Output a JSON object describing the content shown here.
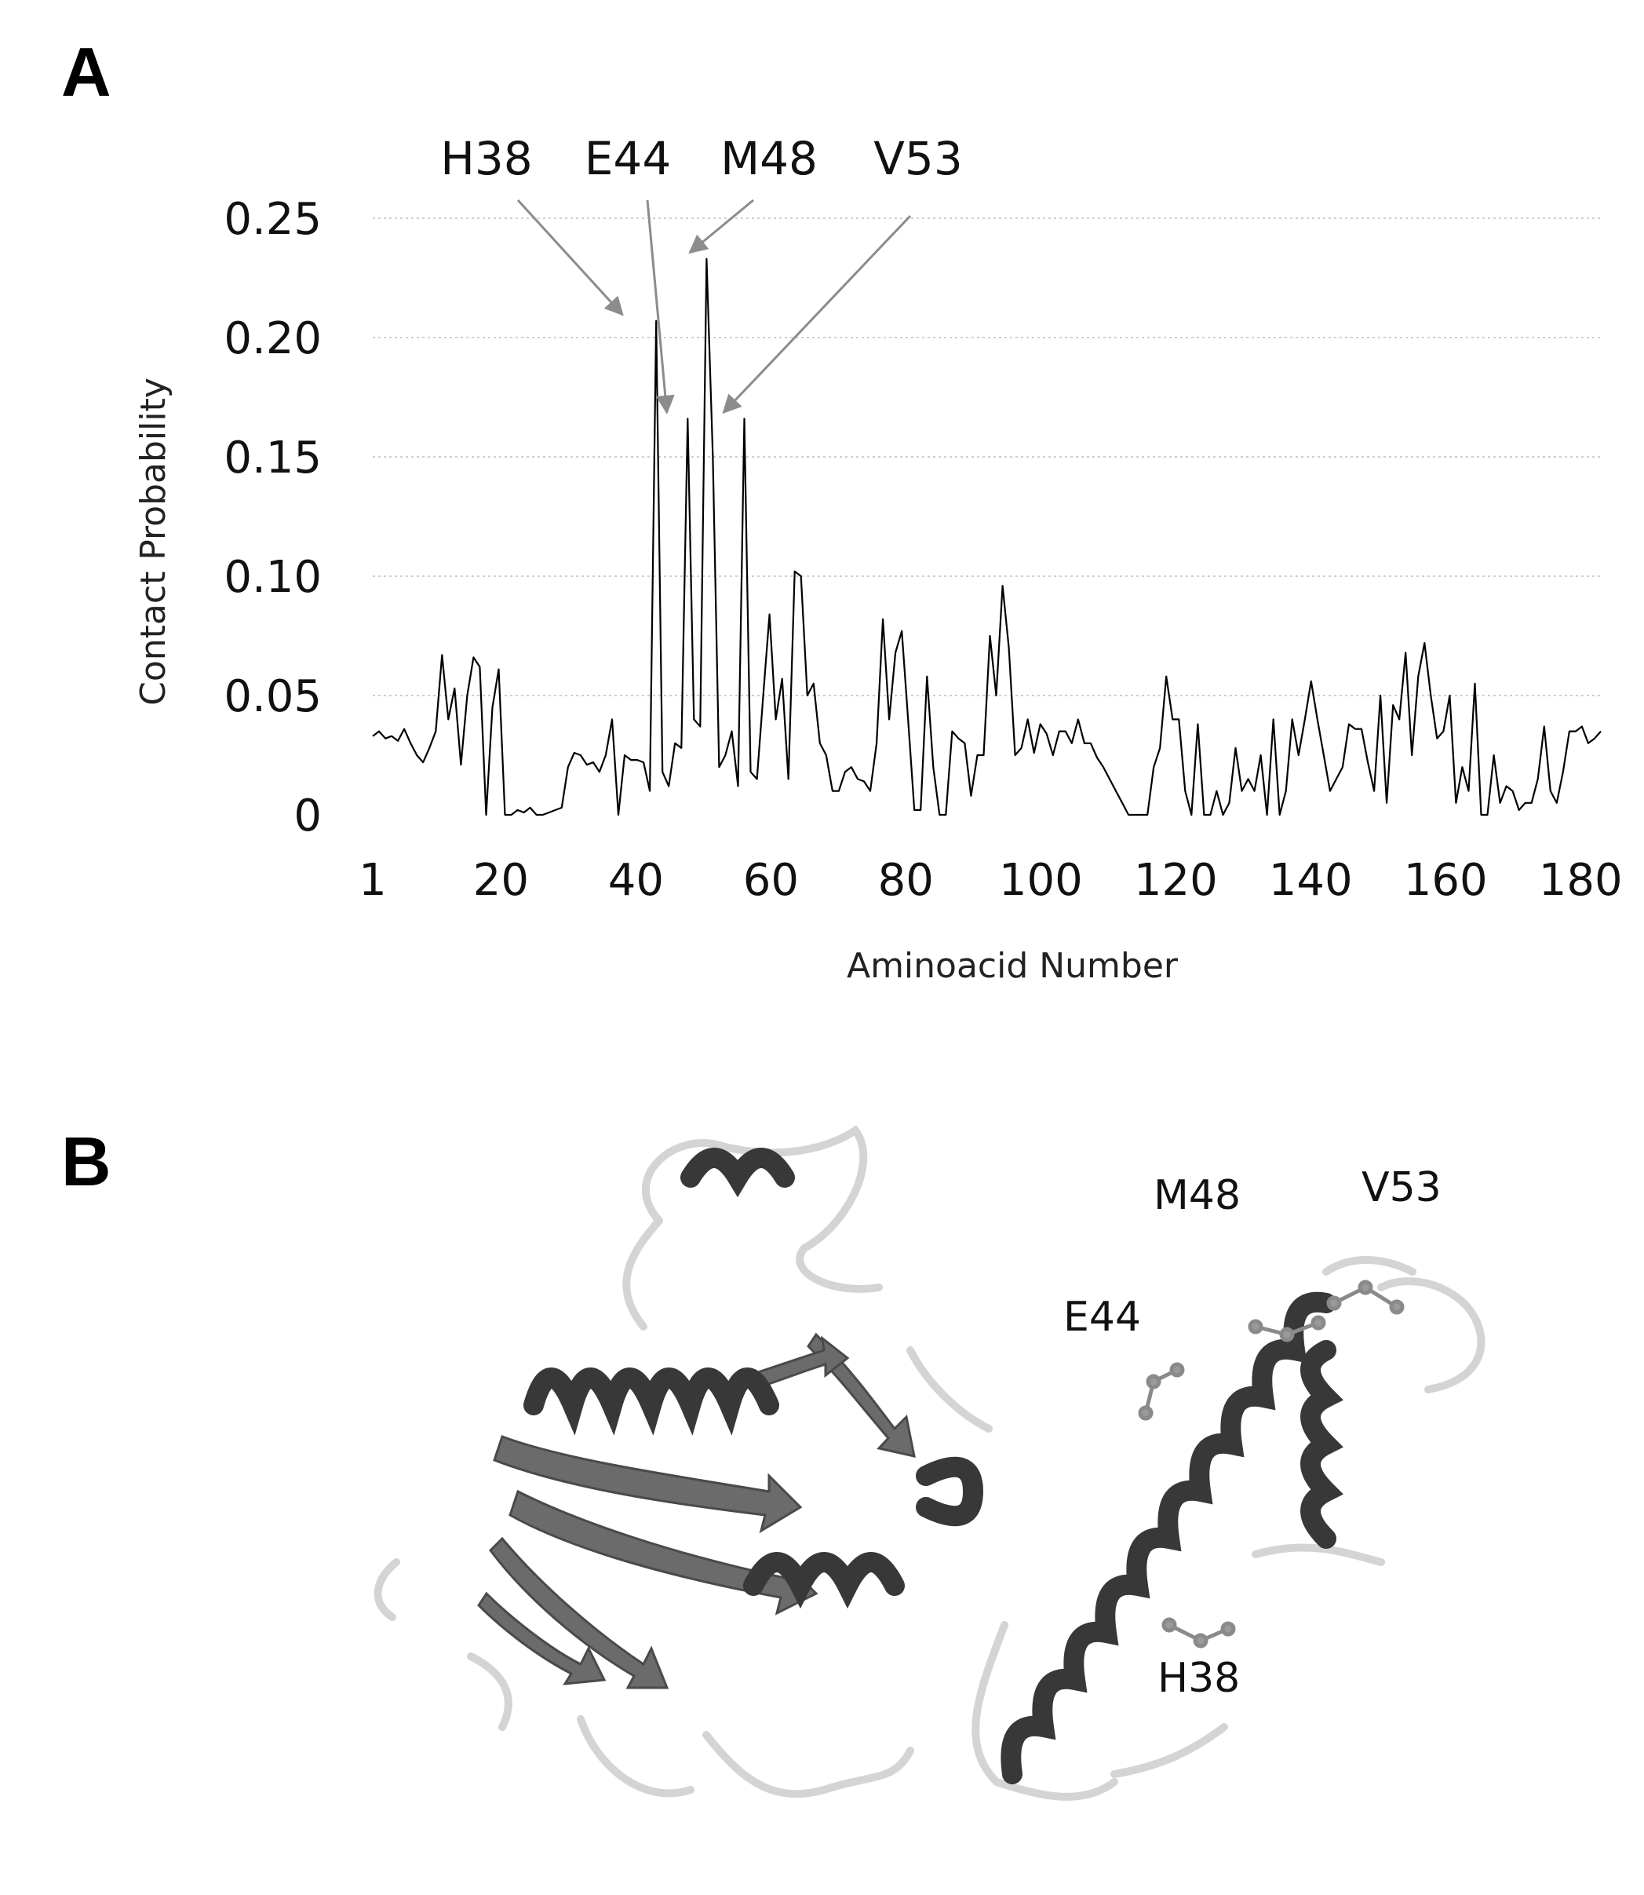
{
  "panels": {
    "a_label": "A",
    "b_label": "B"
  },
  "chart_data": {
    "type": "line",
    "xlabel": "Aminoacid Number",
    "ylabel": "Contact Probability",
    "xlim": [
      1,
      183
    ],
    "ylim": [
      0,
      0.25
    ],
    "x_ticks": [
      {
        "value": 1,
        "label": "1"
      },
      {
        "value": 20,
        "label": "20"
      },
      {
        "value": 40,
        "label": "40"
      },
      {
        "value": 60,
        "label": "60"
      },
      {
        "value": 80,
        "label": "80"
      },
      {
        "value": 100,
        "label": "100"
      },
      {
        "value": 120,
        "label": "120"
      },
      {
        "value": 140,
        "label": "140"
      },
      {
        "value": 160,
        "label": "160"
      },
      {
        "value": 180,
        "label": "180"
      }
    ],
    "y_ticks": [
      {
        "value": 0,
        "label": "0"
      },
      {
        "value": 0.05,
        "label": "0.05"
      },
      {
        "value": 0.1,
        "label": "0.10"
      },
      {
        "value": 0.15,
        "label": "0.15"
      },
      {
        "value": 0.2,
        "label": "0.20"
      },
      {
        "value": 0.25,
        "label": "0.25"
      }
    ],
    "grid": true,
    "line_color": "#000000",
    "series": [
      {
        "values": [
          0.033,
          0.035,
          0.032,
          0.033,
          0.031,
          0.036,
          0.03,
          0.025,
          0.022,
          0.028,
          0.035,
          0.067,
          0.04,
          0.053,
          0.021,
          0.05,
          0.066,
          0.062,
          0.0,
          0.045,
          0.061,
          0.0,
          0.0,
          0.002,
          0.001,
          0.003,
          0.0,
          0.0,
          0.001,
          0.002,
          0.003,
          0.02,
          0.026,
          0.025,
          0.021,
          0.022,
          0.018,
          0.025,
          0.04,
          0.0,
          0.025,
          0.023,
          0.023,
          0.022,
          0.01,
          0.207,
          0.018,
          0.012,
          0.03,
          0.028,
          0.166,
          0.04,
          0.037,
          0.233,
          0.15,
          0.02,
          0.025,
          0.035,
          0.012,
          0.166,
          0.018,
          0.015,
          0.05,
          0.084,
          0.04,
          0.057,
          0.015,
          0.102,
          0.1,
          0.05,
          0.055,
          0.03,
          0.025,
          0.01,
          0.01,
          0.018,
          0.02,
          0.015,
          0.014,
          0.01,
          0.03,
          0.082,
          0.04,
          0.068,
          0.077,
          0.04,
          0.002,
          0.002,
          0.058,
          0.02,
          0.0,
          0.0,
          0.035,
          0.032,
          0.03,
          0.008,
          0.025,
          0.025,
          0.075,
          0.05,
          0.096,
          0.07,
          0.025,
          0.028,
          0.04,
          0.026,
          0.038,
          0.034,
          0.025,
          0.035,
          0.035,
          0.03,
          0.04,
          0.03,
          0.03,
          0.024,
          0.02,
          0.015,
          0.01,
          0.005,
          0.0,
          0.0,
          0.0,
          0.0,
          0.02,
          0.028,
          0.058,
          0.04,
          0.04,
          0.01,
          0.0,
          0.038,
          0.0,
          0.0,
          0.01,
          0.0,
          0.005,
          0.028,
          0.01,
          0.015,
          0.01,
          0.025,
          0.0,
          0.04,
          0.0,
          0.01,
          0.04,
          0.025,
          0.04,
          0.056,
          0.04,
          0.025,
          0.01,
          0.015,
          0.02,
          0.038,
          0.036,
          0.036,
          0.022,
          0.01,
          0.05,
          0.005,
          0.046,
          0.04,
          0.068,
          0.025,
          0.058,
          0.072,
          0.05,
          0.032,
          0.035,
          0.05,
          0.005,
          0.02,
          0.01,
          0.055,
          0.0,
          0.0,
          0.025,
          0.005,
          0.012,
          0.01,
          0.002,
          0.005,
          0.005,
          0.015,
          0.037,
          0.01,
          0.005,
          0.018,
          0.035,
          0.035,
          0.037,
          0.03,
          0.032,
          0.035
        ]
      }
    ],
    "annotations": [
      {
        "text": "H38",
        "target_x": 38,
        "target_y": 0.207
      },
      {
        "text": "E44",
        "target_x": 44,
        "target_y": 0.166
      },
      {
        "text": "M48",
        "target_x": 48,
        "target_y": 0.233
      },
      {
        "text": "V53",
        "target_x": 53,
        "target_y": 0.166
      }
    ]
  },
  "structure": {
    "residue_labels": [
      "M48",
      "V53",
      "E44",
      "H38"
    ],
    "colors": {
      "helix": "#3a3a3a",
      "sheet": "#6b6b6b",
      "coil": "#d6d6d6"
    }
  }
}
